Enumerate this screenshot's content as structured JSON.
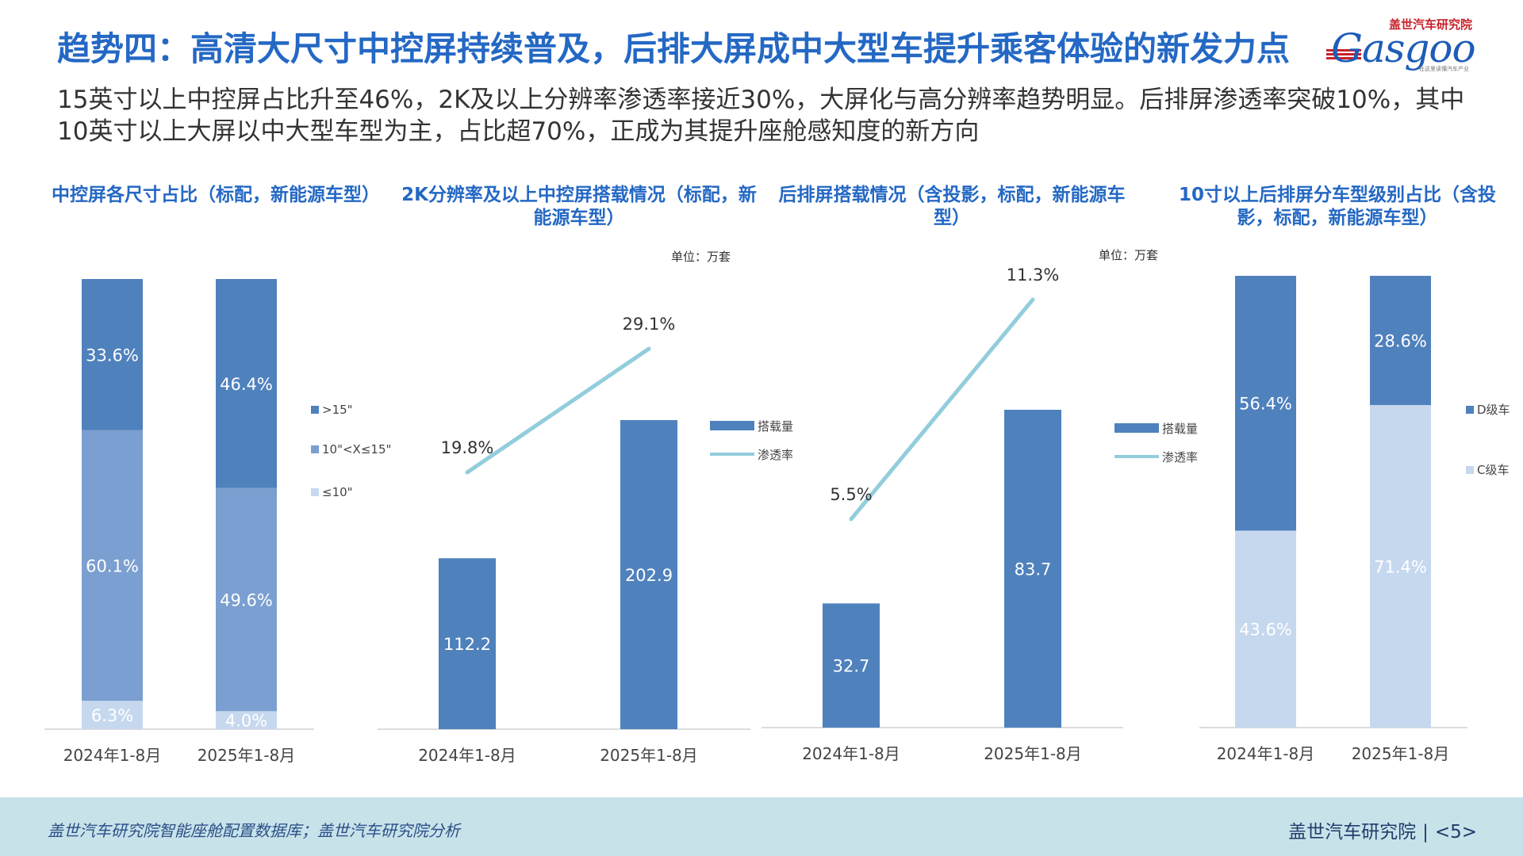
{
  "header": {
    "title": "趋势四：高清大尺寸中控屏持续普及，后排大屏成中大型车提升乘客体验的新发力点",
    "subtitle": "15英寸以上中控屏占比升至46%，2K及以上分辨率渗透率接近30%，大屏化与高分辨率趋势明显。后排屏渗透率突破10%，其中10英寸以上大屏以中大型车型为主，占比超70%，正成为其提升座舱感知度的新方向"
  },
  "logo": {
    "top_text": "盖世汽车研究院",
    "word": "Gasgoo",
    "sub_text": "在这里读懂汽车产业"
  },
  "colors": {
    "title_blue": "#2468c4",
    "dark_bar": "#4f81bd",
    "mid_bar": "#7b9fd0",
    "light_bar": "#c6d8ee",
    "line": "#92cddc",
    "footer_bg": "#c8e2ea"
  },
  "chart_data": [
    {
      "type": "bar",
      "stacked": true,
      "percent": true,
      "title": "中控屏各尺寸占比（标配，新能源车型）",
      "categories": [
        "2024年1-8月",
        "2025年1-8月"
      ],
      "series": [
        {
          "name": "≤10\"",
          "values": [
            6.3,
            4.0
          ],
          "labels": [
            "6.3%",
            "4.0%"
          ],
          "color": "#c6d8ee"
        },
        {
          "name": "10\"<X≤15\"",
          "values": [
            60.1,
            49.6
          ],
          "labels": [
            "60.1%",
            "49.6%"
          ],
          "color": "#7b9fd0"
        },
        {
          "name": ">15\"",
          "values": [
            33.6,
            46.4
          ],
          "labels": [
            "33.6%",
            "46.4%"
          ],
          "color": "#4f81bd"
        }
      ],
      "legend_order": [
        ">15\"",
        "10\"<X≤15\"",
        "≤10\""
      ],
      "legend_position": "right"
    },
    {
      "type": "bar+line",
      "title": "2K分辨率及以上中控屏搭载情况（标配，新能源车型）",
      "unit": "单位：万套",
      "categories": [
        "2024年1-8月",
        "2025年1-8月"
      ],
      "bars": {
        "name": "搭载量",
        "values": [
          112.2,
          202.9
        ],
        "labels": [
          "112.2",
          "202.9"
        ]
      },
      "line": {
        "name": "渗透率",
        "values": [
          19.8,
          29.1
        ],
        "labels": [
          "19.8%",
          "29.1%"
        ]
      },
      "legend_position": "right"
    },
    {
      "type": "bar+line",
      "title": "后排屏搭载情况（含投影，标配，新能源车型）",
      "unit": "单位：万套",
      "categories": [
        "2024年1-8月",
        "2025年1-8月"
      ],
      "bars": {
        "name": "搭载量",
        "values": [
          32.7,
          83.7
        ],
        "labels": [
          "32.7",
          "83.7"
        ]
      },
      "line": {
        "name": "渗透率",
        "values": [
          5.5,
          11.3
        ],
        "labels": [
          "5.5%",
          "11.3%"
        ]
      },
      "legend_position": "right"
    },
    {
      "type": "bar",
      "stacked": true,
      "percent": true,
      "title": "10寸以上后排屏分车型级别占比（含投影，标配，新能源车型）",
      "categories": [
        "2024年1-8月",
        "2025年1-8月"
      ],
      "series": [
        {
          "name": "C级车",
          "values": [
            43.6,
            71.4
          ],
          "labels": [
            "43.6%",
            "71.4%"
          ],
          "color": "#c6d8ee"
        },
        {
          "name": "D级车",
          "values": [
            56.4,
            28.6
          ],
          "labels": [
            "56.4%",
            "28.6%"
          ],
          "color": "#4f81bd"
        }
      ],
      "legend_order": [
        "D级车",
        "C级车"
      ],
      "legend_position": "right"
    }
  ],
  "footer": {
    "source": "盖世汽车研究院智能座舱配置数据库；盖世汽车研究院分析",
    "org": "盖世汽车研究院",
    "separator": "|",
    "page": "<5>"
  }
}
